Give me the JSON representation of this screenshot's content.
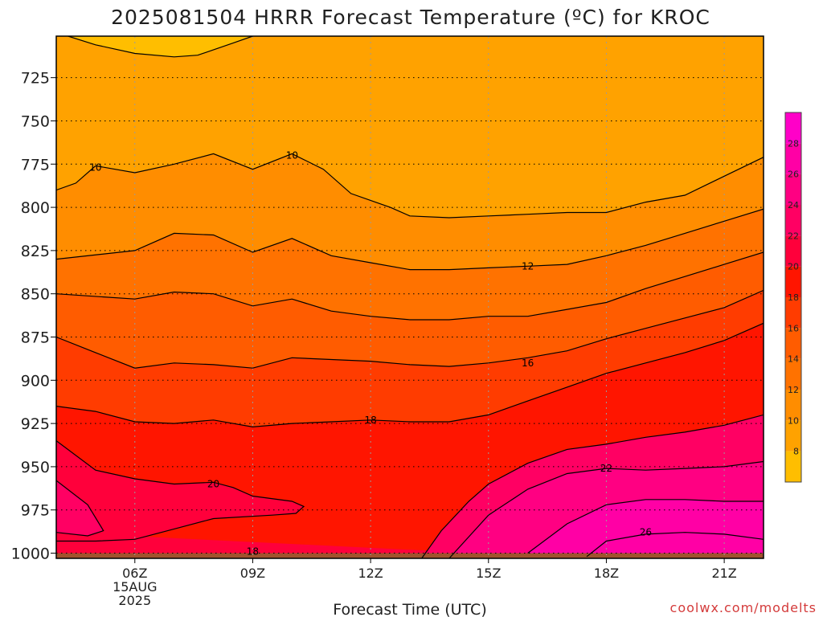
{
  "chart_data": {
    "type": "contour",
    "title": "2025081504 HRRR Forecast Temperature (ºC) for KROC",
    "xlabel": "Forecast Time (UTC)",
    "credit": "coolwx.com/modelts",
    "x_ticks": [
      {
        "label": "06Z",
        "sub1": "15AUG",
        "sub2": "2025",
        "hour": 6
      },
      {
        "label": "09Z",
        "hour": 9
      },
      {
        "label": "12Z",
        "hour": 12
      },
      {
        "label": "15Z",
        "hour": 15
      },
      {
        "label": "18Z",
        "hour": 18
      },
      {
        "label": "21Z",
        "hour": 21
      }
    ],
    "xlim": [
      4,
      22
    ],
    "y_ticks": [
      725,
      750,
      775,
      800,
      825,
      850,
      875,
      900,
      925,
      950,
      975,
      1000
    ],
    "ylim": [
      701,
      1003
    ],
    "y_axis": "pressure (hPa), inverted",
    "surface_pressure": 1000,
    "colorbar": {
      "levels": [
        8,
        10,
        12,
        14,
        16,
        18,
        20,
        22,
        24,
        26,
        28
      ],
      "bounds": [
        6,
        30
      ],
      "colors": [
        "#ffbe00",
        "#ffa200",
        "#ff8d00",
        "#ff7200",
        "#ff5c00",
        "#ff3c00",
        "#ff1500",
        "#ff003b",
        "#ff0063",
        "#ff0082",
        "#ff00a5",
        "#ff00c8"
      ]
    },
    "contours": [
      {
        "level": 10,
        "points": [
          [
            4,
            790
          ],
          [
            4.5,
            786
          ],
          [
            5,
            776
          ],
          [
            6,
            780
          ],
          [
            7,
            775
          ],
          [
            8,
            769
          ],
          [
            9,
            778
          ],
          [
            10,
            769
          ],
          [
            10.8,
            778
          ],
          [
            11.5,
            792
          ],
          [
            12.5,
            800
          ],
          [
            13,
            805
          ],
          [
            14,
            806
          ],
          [
            15,
            805
          ],
          [
            16,
            804
          ],
          [
            17,
            803
          ],
          [
            18,
            803
          ],
          [
            19,
            797
          ],
          [
            20,
            793
          ],
          [
            21,
            782
          ],
          [
            22,
            771
          ]
        ]
      },
      {
        "level": 12,
        "points": [
          [
            4,
            830
          ],
          [
            6,
            825
          ],
          [
            7,
            815
          ],
          [
            8,
            816
          ],
          [
            9,
            826
          ],
          [
            10,
            818
          ],
          [
            11,
            828
          ],
          [
            12,
            832
          ],
          [
            13,
            836
          ],
          [
            14,
            836
          ],
          [
            15,
            835
          ],
          [
            16,
            834
          ],
          [
            17,
            833
          ],
          [
            18,
            828
          ],
          [
            19,
            822
          ],
          [
            20,
            815
          ],
          [
            21,
            808
          ],
          [
            22,
            801
          ]
        ]
      },
      {
        "level": 14,
        "points": [
          [
            4,
            850
          ],
          [
            6,
            853
          ],
          [
            7,
            849
          ],
          [
            8,
            850
          ],
          [
            9,
            857
          ],
          [
            10,
            853
          ],
          [
            11,
            860
          ],
          [
            12,
            863
          ],
          [
            13,
            865
          ],
          [
            14,
            865
          ],
          [
            15,
            863
          ],
          [
            16,
            863
          ],
          [
            17,
            859
          ],
          [
            18,
            855
          ],
          [
            19,
            847
          ],
          [
            20,
            840
          ],
          [
            21,
            833
          ],
          [
            22,
            826
          ]
        ]
      },
      {
        "level": 16,
        "points": [
          [
            4,
            875
          ],
          [
            5,
            884
          ],
          [
            6,
            893
          ],
          [
            7,
            890
          ],
          [
            8,
            891
          ],
          [
            9,
            893
          ],
          [
            10,
            887
          ],
          [
            11,
            888
          ],
          [
            12,
            889
          ],
          [
            13,
            891
          ],
          [
            14,
            892
          ],
          [
            15,
            890
          ],
          [
            16,
            887
          ],
          [
            17,
            883
          ],
          [
            18,
            876
          ],
          [
            19,
            870
          ],
          [
            20,
            864
          ],
          [
            21,
            858
          ],
          [
            22,
            848
          ]
        ]
      },
      {
        "level": 18,
        "points": [
          [
            4,
            915
          ],
          [
            5,
            918
          ],
          [
            6,
            924
          ],
          [
            7,
            925
          ],
          [
            8,
            923
          ],
          [
            9,
            927
          ],
          [
            10,
            925
          ],
          [
            11,
            924
          ],
          [
            12,
            923
          ],
          [
            13,
            924
          ],
          [
            14,
            924
          ],
          [
            15,
            920
          ],
          [
            16,
            912
          ],
          [
            17,
            904
          ],
          [
            18,
            896
          ],
          [
            19,
            890
          ],
          [
            20,
            884
          ],
          [
            21,
            877
          ],
          [
            22,
            867
          ]
        ]
      },
      {
        "level": 20,
        "points": [
          [
            4,
            935
          ],
          [
            5,
            952
          ],
          [
            6,
            957
          ],
          [
            7,
            960
          ],
          [
            8,
            959
          ],
          [
            8.5,
            962
          ],
          [
            9,
            967
          ],
          [
            10,
            970
          ],
          [
            10.3,
            973
          ],
          [
            10.1,
            977
          ],
          [
            9.5,
            978
          ],
          [
            8,
            980
          ],
          [
            7,
            986
          ],
          [
            6,
            992
          ],
          [
            5,
            993
          ],
          [
            4,
            993
          ]
        ]
      },
      {
        "level": 18,
        "points": [
          [
            4,
            958
          ],
          [
            4.8,
            972
          ],
          [
            5.2,
            987
          ],
          [
            4.8,
            990
          ],
          [
            4,
            988
          ]
        ]
      },
      {
        "level": 20,
        "points": [
          [
            13.3,
            1003
          ],
          [
            13.8,
            987
          ],
          [
            14.5,
            970
          ],
          [
            15,
            960
          ],
          [
            16,
            948
          ],
          [
            17,
            940
          ],
          [
            18,
            937
          ],
          [
            19,
            933
          ],
          [
            20,
            930
          ],
          [
            21,
            926
          ],
          [
            22,
            920
          ]
        ]
      },
      {
        "level": 22,
        "points": [
          [
            14,
            1003
          ],
          [
            15,
            978
          ],
          [
            16,
            963
          ],
          [
            17,
            954
          ],
          [
            18,
            951
          ],
          [
            19,
            952
          ],
          [
            20,
            951
          ],
          [
            21,
            950
          ],
          [
            22,
            947
          ]
        ]
      },
      {
        "level": 24,
        "points": [
          [
            16,
            1000
          ],
          [
            17,
            983
          ],
          [
            18,
            972
          ],
          [
            19,
            969
          ],
          [
            20,
            969
          ],
          [
            21,
            970
          ],
          [
            22,
            970
          ]
        ]
      },
      {
        "level": 26,
        "points": [
          [
            17.5,
            1002
          ],
          [
            18,
            993
          ],
          [
            19,
            989
          ],
          [
            20,
            988
          ],
          [
            21,
            989
          ],
          [
            22,
            992
          ]
        ]
      },
      {
        "level": 6,
        "points": [
          [
            4.3,
            701
          ],
          [
            5,
            706
          ],
          [
            6,
            711
          ],
          [
            7,
            713
          ],
          [
            7.6,
            712
          ],
          [
            8.5,
            705
          ],
          [
            9,
            701
          ]
        ]
      }
    ],
    "contour_labels": [
      {
        "text": "10",
        "x": 5,
        "y": 777
      },
      {
        "text": "10",
        "x": 10,
        "y": 770
      },
      {
        "text": "12",
        "x": 16,
        "y": 834
      },
      {
        "text": "16",
        "x": 16,
        "y": 890
      },
      {
        "text": "18",
        "x": 12,
        "y": 923
      },
      {
        "text": "20",
        "x": 8,
        "y": 960
      },
      {
        "text": "22",
        "x": 18,
        "y": 951
      },
      {
        "text": "26",
        "x": 19,
        "y": 988
      },
      {
        "text": "18",
        "x": 9,
        "y": 999
      }
    ],
    "colorbar_ticks": [
      "8",
      "10",
      "12",
      "14",
      "16",
      "18",
      "20",
      "22",
      "24",
      "26",
      "28"
    ]
  }
}
